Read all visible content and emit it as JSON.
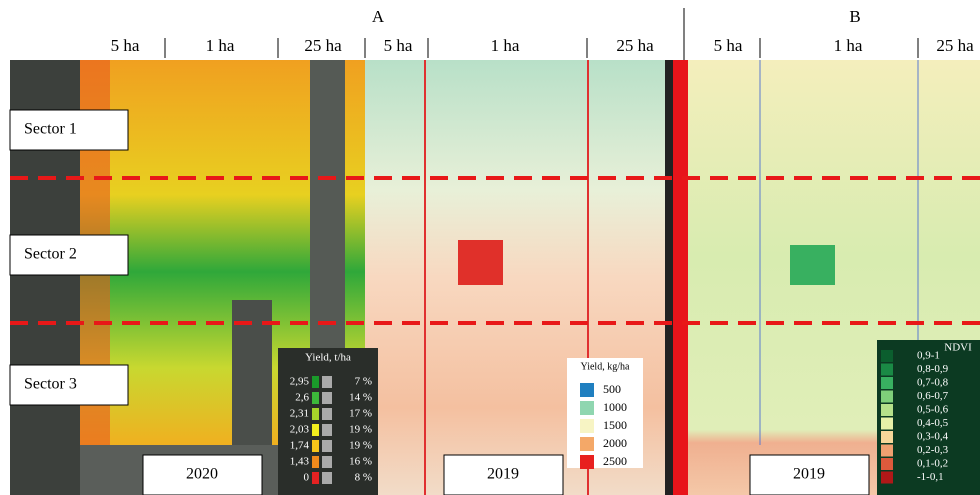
{
  "panels": [
    {
      "label": "A"
    },
    {
      "label": "B"
    }
  ],
  "plot_labels": [
    "5 ha",
    "1 ha",
    "25 ha",
    "5 ha",
    "1 ha",
    "25 ha",
    "5 ha",
    "1 ha",
    "25 ha"
  ],
  "sectors": [
    "Sector 1",
    "Sector 2",
    "Sector 3"
  ],
  "years": [
    "2020",
    "2019",
    "2019"
  ],
  "legend_2020": {
    "title": "Yield, t/ha",
    "rows": [
      {
        "value": "2,95",
        "share": "7 %",
        "color": "#1a9a2a"
      },
      {
        "value": "2,6",
        "share": "14 %",
        "color": "#3cb83a"
      },
      {
        "value": "2,31",
        "share": "17 %",
        "color": "#a6d42a"
      },
      {
        "value": "2,03",
        "share": "19 %",
        "color": "#f2ee1e"
      },
      {
        "value": "1,74",
        "share": "19 %",
        "color": "#f7c51a"
      },
      {
        "value": "1,43",
        "share": "16 %",
        "color": "#f08a1c"
      },
      {
        "value": "0",
        "share": "8 %",
        "color": "#e52222"
      }
    ]
  },
  "legend_2019": {
    "title": "Yield, kg/ha",
    "items": [
      {
        "label": "500",
        "color": "#1f7fc0"
      },
      {
        "label": "1000",
        "color": "#8fd6b0"
      },
      {
        "label": "1500",
        "color": "#f7f4c4"
      },
      {
        "label": "2000",
        "color": "#f4a868"
      },
      {
        "label": "2500",
        "color": "#e8201e"
      }
    ]
  },
  "legend_ndvi": {
    "title": "NDVI",
    "items": [
      {
        "label": "0,9-1",
        "color": "#0b5e2e"
      },
      {
        "label": "0,8-0,9",
        "color": "#1a8a45"
      },
      {
        "label": "0,7-0,8",
        "color": "#38b060"
      },
      {
        "label": "0,6-0,7",
        "color": "#7fcf7a"
      },
      {
        "label": "0,5-0,6",
        "color": "#b5e08a"
      },
      {
        "label": "0,4-0,5",
        "color": "#e6f0a8"
      },
      {
        "label": "0,3-0,4",
        "color": "#f7d79a"
      },
      {
        "label": "0,2-0,3",
        "color": "#f0a070"
      },
      {
        "label": "0,1-0,2",
        "color": "#dd5a3c"
      },
      {
        "label": "-1-0,1",
        "color": "#b01818"
      }
    ]
  }
}
